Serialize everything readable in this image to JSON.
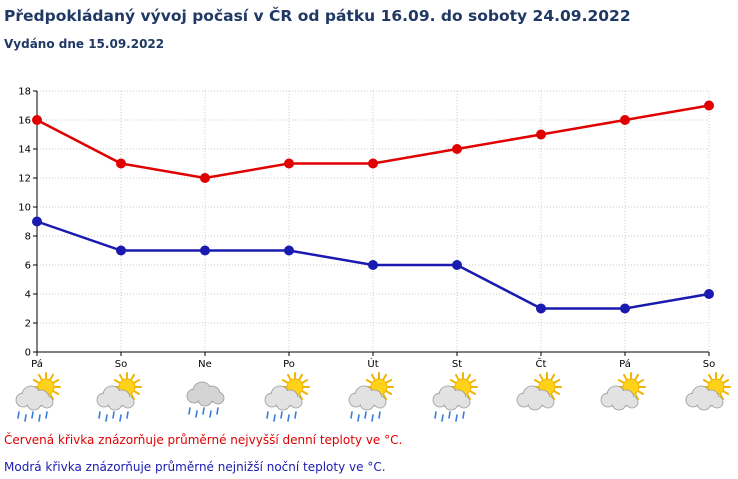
{
  "header": {
    "title": "Předpokládaný vývoj počasí v ČR od pátku 16.09. do soboty 24.09.2022",
    "issued": "Vydáno dne 15.09.2022"
  },
  "chart_data": {
    "type": "line",
    "categories": [
      "Pá",
      "So",
      "Ne",
      "Po",
      "Út",
      "St",
      "Čt",
      "Pá",
      "So"
    ],
    "ylim": [
      0,
      18
    ],
    "y_ticks": [
      0,
      2,
      4,
      6,
      8,
      10,
      12,
      14,
      16,
      18
    ],
    "grid": true,
    "series": [
      {
        "values": [
          16,
          13,
          12,
          13,
          13,
          14,
          15,
          16,
          17
        ],
        "color": "#e00000"
      },
      {
        "values": [
          9,
          7,
          7,
          7,
          6,
          6,
          3,
          3,
          4
        ],
        "color": "#1a1ab0"
      }
    ],
    "weather_icons": [
      "sun-cloud-rain",
      "sun-cloud-rain",
      "cloud-rain",
      "sun-cloud-rain",
      "sun-cloud-rain",
      "sun-cloud-rain",
      "sun-cloud",
      "sun-cloud",
      "sun-cloud"
    ]
  },
  "legend_notes": {
    "red": "Červená křivka znázorňuje průměrné nejvyšší denní teploty ve °C.",
    "blue": "Modrá křivka znázorňuje průměrné nejnižší noční teploty ve °C."
  }
}
